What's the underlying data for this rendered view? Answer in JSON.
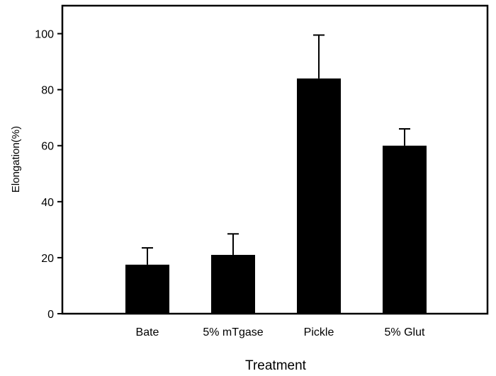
{
  "chart_data": {
    "type": "bar",
    "xlabel": "Treatment",
    "ylabel": "Elongation(%)",
    "categories": [
      "Bate",
      "5% mTgase",
      "Pickle",
      "5% Glut"
    ],
    "values": [
      17.5,
      21,
      84,
      60
    ],
    "error_upper": [
      23.5,
      28.5,
      99.5,
      66
    ],
    "ylim": [
      0,
      110
    ],
    "yticks": [
      0,
      20,
      40,
      60,
      80,
      100
    ],
    "bar_color": "#000000",
    "grid": false,
    "legend": "none"
  }
}
